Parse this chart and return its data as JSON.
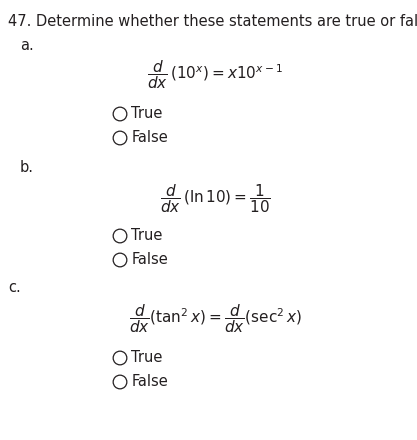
{
  "title_num": "47.",
  "title_text": " Determine whether these statements are true or false.",
  "part_a_label": "a.",
  "part_b_label": "b.",
  "part_c_label": "c.",
  "formula_a": "$\\dfrac{d}{dx}\\,(10^x) = x10^{x-1}$",
  "formula_b": "$\\dfrac{d}{dx}\\,(\\ln 10) = \\dfrac{1}{10}$",
  "formula_c": "$\\dfrac{d}{dx}(\\tan^2 x) = \\dfrac{d}{dx}(\\sec^2 x)$",
  "true_label": "True",
  "false_label": "False",
  "bg_color": "#ffffff",
  "text_color": "#231f20",
  "fs_title": 10.5,
  "fs_label": 10.5,
  "fs_formula": 11.0,
  "fs_tf": 10.5,
  "fig_width": 4.17,
  "fig_height": 4.4,
  "dpi": 100
}
